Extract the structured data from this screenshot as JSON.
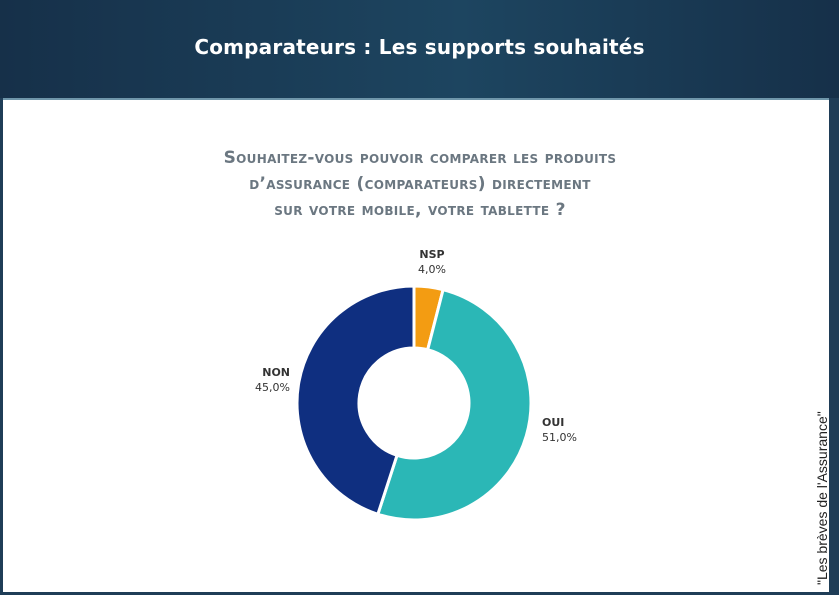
{
  "header": {
    "title": "Comparateurs : Les supports souhaités"
  },
  "source_label": "\"Les brèves de l'Assurance\"",
  "chart_data": {
    "type": "pie",
    "title_lines": [
      "Souhaitez-vous pouvoir comparer les produits",
      "d’assurance (comparateurs) directement",
      "sur votre mobile, votre tablette ?"
    ],
    "slices": [
      {
        "label": "NSP",
        "value": 4.0,
        "value_label": "4,0%",
        "color": "#f39c12"
      },
      {
        "label": "OUI",
        "value": 51.0,
        "value_label": "51,0%",
        "color": "#2bb7b6"
      },
      {
        "label": "NON",
        "value": 45.0,
        "value_label": "45,0%",
        "color": "#0f2f80"
      }
    ],
    "donut": true,
    "start_angle": "12 o'clock, clockwise",
    "legend": "none"
  }
}
